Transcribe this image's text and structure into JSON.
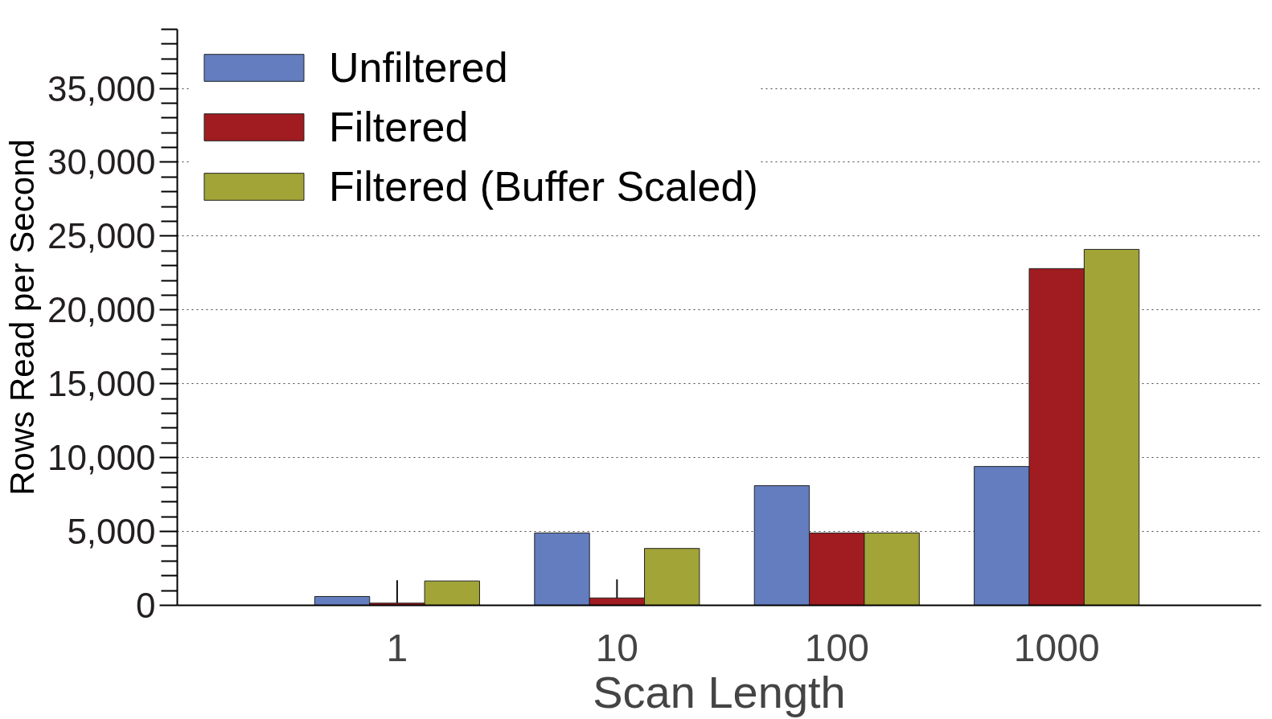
{
  "chart_data": {
    "type": "bar",
    "xlabel": "Scan Length",
    "ylabel": "Rows Read per Second",
    "categories": [
      "1",
      "10",
      "100",
      "1000"
    ],
    "series": [
      {
        "name": "Unfiltered",
        "color": "#647dbf",
        "values": [
          600,
          4900,
          8100,
          9400
        ]
      },
      {
        "name": "Filtered",
        "color": "#a01c20",
        "values": [
          150,
          500,
          4900,
          22800
        ],
        "errors": [
          [
            150,
            1700
          ],
          [
            500,
            1750
          ],
          null,
          null
        ]
      },
      {
        "name": "Filtered (Buffer Scaled)",
        "color": "#a2a437",
        "values": [
          1650,
          3850,
          4900,
          24100
        ]
      }
    ],
    "ylim": [
      0,
      39000
    ],
    "yticks": [
      0,
      {
        "value": 5000,
        "label": "5,000"
      },
      {
        "value": 10000,
        "label": "10,000"
      },
      {
        "value": 15000,
        "label": "15,000"
      },
      {
        "value": 20000,
        "label": "20,000"
      },
      {
        "value": 25000,
        "label": "25,000"
      },
      {
        "value": 30000,
        "label": "30,000"
      },
      {
        "value": 35000,
        "label": "35,000"
      }
    ],
    "grid": "y",
    "legend": "top left"
  }
}
